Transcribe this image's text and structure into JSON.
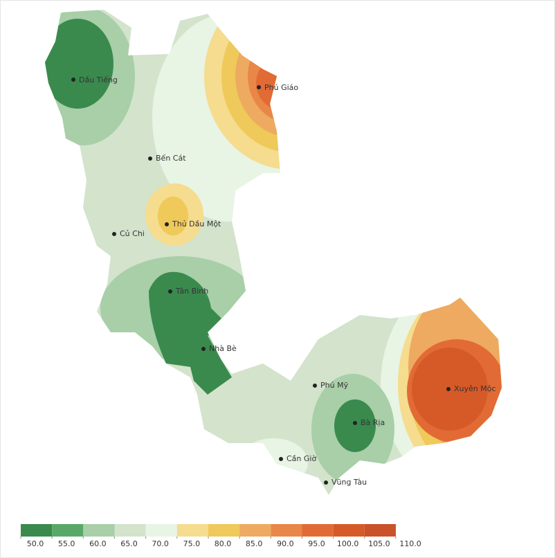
{
  "places": [
    "Dầu Tiếng",
    "Phú Giáo",
    "Bến Cát",
    "Thủ Dầu Một",
    "Củ Chi",
    "Tân Bình",
    "Nhà Bè",
    "Phú Mỹ",
    "Xuyên Mộc",
    "Bà Rịa",
    "Cần Giờ",
    "Vũng Tàu"
  ],
  "legend": {
    "ticks": [
      {
        "value": 50,
        "label": "50.0"
      },
      {
        "value": 55,
        "label": "55.0"
      },
      {
        "value": 60,
        "label": "60.0"
      },
      {
        "value": 65,
        "label": "65.0"
      },
      {
        "value": 70,
        "label": "70.0"
      },
      {
        "value": 75,
        "label": "75.0"
      },
      {
        "value": 80,
        "label": "80.0"
      },
      {
        "value": 85,
        "label": "85.0"
      },
      {
        "value": 90,
        "label": "90.0"
      },
      {
        "value": 95,
        "label": "95.0"
      },
      {
        "value": 100,
        "label": "100.0"
      },
      {
        "value": 105,
        "label": "105.0"
      },
      {
        "value": 110,
        "label": "110.0"
      }
    ],
    "colors": [
      "#3a8a4e",
      "#5aa867",
      "#a8cfa8",
      "#d3e3cc",
      "#e8f4e4",
      "#f5dc8e",
      "#efc95a",
      "#eeaa60",
      "#e88747",
      "#e26b35",
      "#d65a28",
      "#c9522a"
    ]
  }
}
